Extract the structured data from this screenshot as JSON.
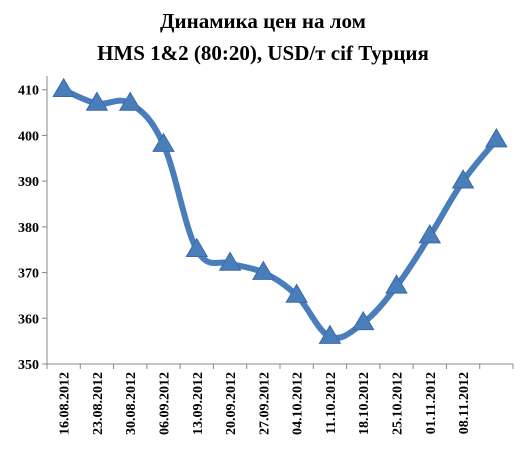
{
  "chart_data": {
    "type": "line",
    "title_line1": "Динамика цен на лом",
    "title_line2": "HMS 1&2 (80:20), USD/т cif  Турция",
    "categories": [
      "16.08.2012",
      "23.08.2012",
      "30.08.2012",
      "06.09.2012",
      "13.09.2012",
      "20.09.2012",
      "27.09.2012",
      "04.10.2012",
      "11.10.2012",
      "18.10.2012",
      "25.10.2012",
      "01.11.2012",
      "08.11.2012",
      ""
    ],
    "series": [
      {
        "values": [
          410,
          407,
          407,
          398,
          375,
          372,
          370,
          365,
          356,
          359,
          367,
          378,
          390,
          399
        ],
        "color": "#4a7ebb"
      }
    ],
    "yticks": [
      "350",
      "360",
      "370",
      "380",
      "390",
      "400",
      "410"
    ],
    "ylim": [
      350,
      413
    ],
    "grid": false,
    "legend": "none",
    "marker": "triangle"
  }
}
